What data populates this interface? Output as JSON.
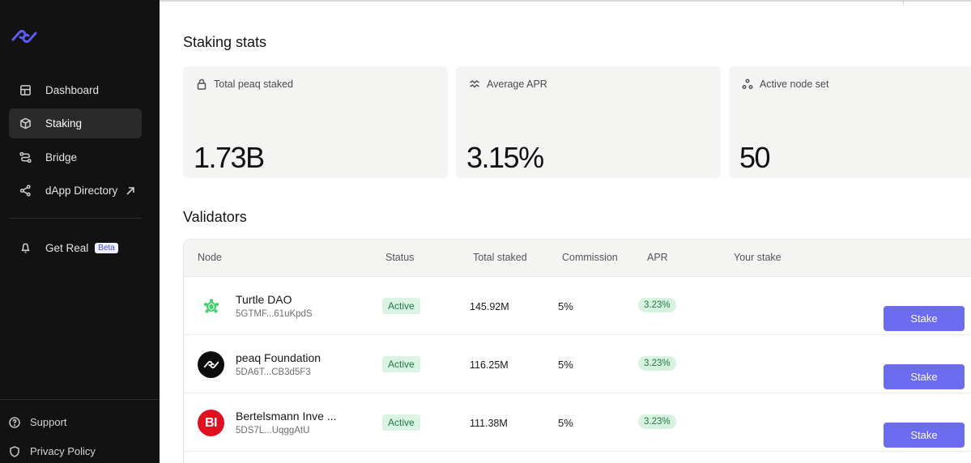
{
  "sidebar": {
    "logo": "peaq-logo-icon",
    "items": [
      {
        "label": "Dashboard",
        "icon": "dashboard-icon",
        "active": false
      },
      {
        "label": "Staking",
        "icon": "cube-icon",
        "active": true
      },
      {
        "label": "Bridge",
        "icon": "bridge-icon",
        "active": false
      },
      {
        "label": "dApp Directory",
        "icon": "share-icon",
        "active": false
      }
    ],
    "get_real": {
      "label": "Get Real",
      "badge": "Beta",
      "icon": "bell-icon"
    },
    "footer": [
      {
        "label": "Support",
        "icon": "help-icon"
      },
      {
        "label": "Privacy Policy",
        "icon": "shield-icon"
      }
    ]
  },
  "stats": {
    "title": "Staking stats",
    "cards": [
      {
        "label": "Total peaq staked",
        "value": "1.73B",
        "icon": "lock-icon"
      },
      {
        "label": "Average APR",
        "value": "3.15%",
        "icon": "trend-icon"
      },
      {
        "label": "Active node set",
        "value": "50",
        "icon": "nodes-icon"
      }
    ]
  },
  "validators": {
    "title": "Validators",
    "columns": [
      "Node",
      "Status",
      "Total staked",
      "Commission",
      "APR",
      "Your stake"
    ],
    "rows": [
      {
        "name": "Turtle DAO",
        "address": "5GTMF...61uKpdS",
        "status": "Active",
        "total": "145.92M",
        "commission": "5%",
        "apr": "3.23%",
        "action": "Stake",
        "logo": "turtle-icon"
      },
      {
        "name": "peaq Foundation",
        "address": "5DA6T...CB3d5F3",
        "status": "Active",
        "total": "116.25M",
        "commission": "5%",
        "apr": "3.23%",
        "action": "Stake",
        "logo": "peaq-logo-icon"
      },
      {
        "name": "Bertelsmann Inve ...",
        "address": "5DS7L...UqggAtU",
        "status": "Active",
        "total": "111.38M",
        "commission": "5%",
        "apr": "3.23%",
        "action": "Stake",
        "logo": "bi-logo-icon",
        "logo_text": "BI"
      }
    ]
  },
  "colors": {
    "sidebar_bg": "#121212",
    "accent": "#6c6cf0",
    "logo_blue": "#5b5bf5",
    "status_green": "#1f7a44",
    "bi_red": "#e0101f",
    "turtle_green": "#3ed06c"
  }
}
